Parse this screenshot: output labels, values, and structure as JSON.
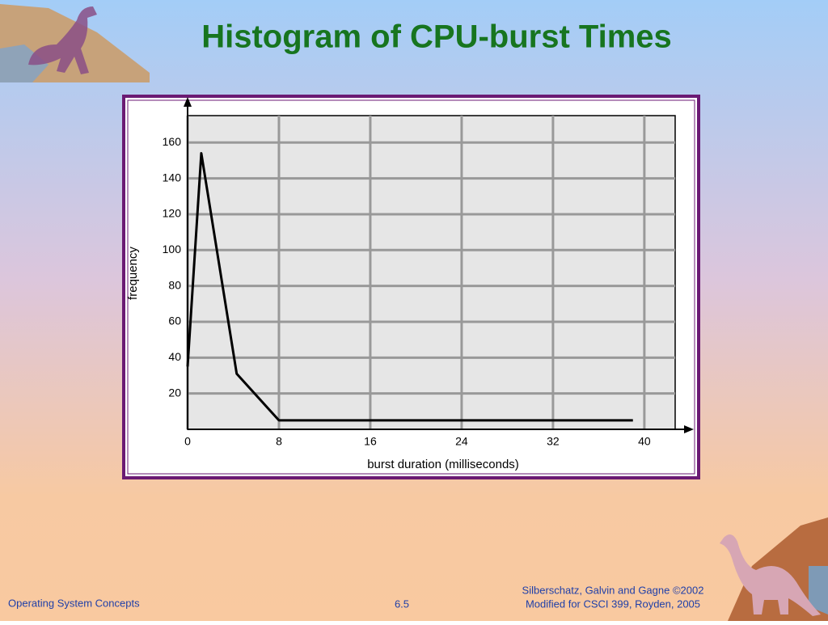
{
  "chart_data": {
    "type": "line",
    "title": "Histogram of CPU-burst Times",
    "x_label": "burst duration (milliseconds)",
    "y_label": "frequency",
    "x": [
      0,
      1.2,
      4.3,
      8,
      39
    ],
    "values": [
      35,
      154,
      31,
      5,
      5
    ],
    "color": "#000000",
    "xlim": [
      0,
      42.7
    ],
    "ylim": [
      0,
      175
    ],
    "xticks": [
      0,
      8,
      16,
      24,
      32,
      40
    ],
    "yticks": [
      20,
      40,
      60,
      80,
      100,
      120,
      140,
      160
    ],
    "grid": true
  },
  "footer": {
    "left": "Operating System Concepts",
    "center": "6.5",
    "right": [
      "Silberschatz, Galvin and  Gagne ©2002",
      "Modified for CSCI 399, Royden, 2005"
    ]
  }
}
